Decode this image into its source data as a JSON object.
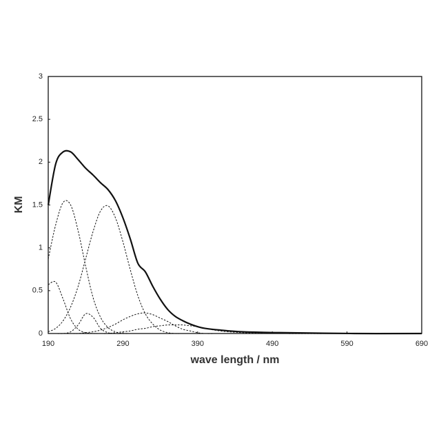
{
  "chart_data": {
    "type": "line",
    "xlabel": "wave length / nm",
    "ylabel": "KM",
    "x": [
      190,
      200,
      210,
      220,
      230,
      240,
      250,
      260,
      270,
      280,
      290,
      300,
      310,
      320,
      330,
      340,
      350,
      360,
      370,
      380,
      390,
      400,
      420,
      450,
      500,
      600,
      690
    ],
    "series": [
      {
        "color": "#111111",
        "style": "solid",
        "values": [
          1.5,
          1.98,
          2.12,
          2.12,
          2.03,
          1.93,
          1.85,
          1.76,
          1.68,
          1.55,
          1.35,
          1.1,
          0.82,
          0.72,
          0.55,
          0.4,
          0.28,
          0.2,
          0.15,
          0.11,
          0.08,
          0.06,
          0.04,
          0.02,
          0.01,
          0,
          0
        ]
      },
      {
        "color": "#111111",
        "style": "dashed",
        "values": [
          0.57,
          0.6,
          0.4,
          0.17,
          0.05,
          0.01,
          0,
          0,
          0,
          0,
          0,
          0,
          0,
          0,
          0,
          0,
          0,
          0,
          0,
          0,
          0,
          0,
          0,
          0,
          0,
          0,
          0
        ]
      },
      {
        "color": "#111111",
        "style": "dashed",
        "values": [
          0.87,
          1.27,
          1.53,
          1.5,
          1.2,
          0.79,
          0.42,
          0.19,
          0.07,
          0.02,
          0,
          0,
          0,
          0,
          0,
          0,
          0,
          0,
          0,
          0,
          0,
          0,
          0,
          0,
          0,
          0,
          0
        ]
      },
      {
        "color": "#111111",
        "style": "dashed",
        "values": [
          0,
          0,
          0,
          0.02,
          0.1,
          0.23,
          0.19,
          0.06,
          0.01,
          0,
          0,
          0,
          0,
          0,
          0,
          0,
          0,
          0,
          0,
          0,
          0,
          0,
          0,
          0,
          0,
          0,
          0
        ]
      },
      {
        "color": "#111111",
        "style": "dashed",
        "values": [
          0.02,
          0.06,
          0.15,
          0.31,
          0.55,
          0.87,
          1.19,
          1.43,
          1.49,
          1.35,
          1.07,
          0.74,
          0.44,
          0.23,
          0.11,
          0.04,
          0.01,
          0,
          0,
          0,
          0,
          0,
          0,
          0,
          0,
          0,
          0
        ]
      },
      {
        "color": "#111111",
        "style": "dashed",
        "values": [
          0,
          0,
          0,
          0,
          0,
          0.01,
          0.02,
          0.04,
          0.07,
          0.11,
          0.16,
          0.2,
          0.23,
          0.24,
          0.22,
          0.18,
          0.14,
          0.09,
          0.05,
          0.03,
          0.01,
          0,
          0,
          0,
          0,
          0,
          0
        ]
      },
      {
        "color": "#111111",
        "style": "dashed",
        "values": [
          0,
          0,
          0,
          0,
          0,
          0,
          0,
          0,
          0,
          0.01,
          0.02,
          0.03,
          0.05,
          0.06,
          0.08,
          0.09,
          0.1,
          0.1,
          0.1,
          0.09,
          0.08,
          0.06,
          0.03,
          0.01,
          0,
          0,
          0
        ]
      }
    ],
    "xlim": [
      190,
      690
    ],
    "xticks": [
      190,
      290,
      390,
      490,
      590,
      690
    ],
    "ylim": [
      0,
      3
    ],
    "yticks": [
      0,
      0.5,
      1,
      1.5,
      2,
      2.5,
      3
    ]
  }
}
